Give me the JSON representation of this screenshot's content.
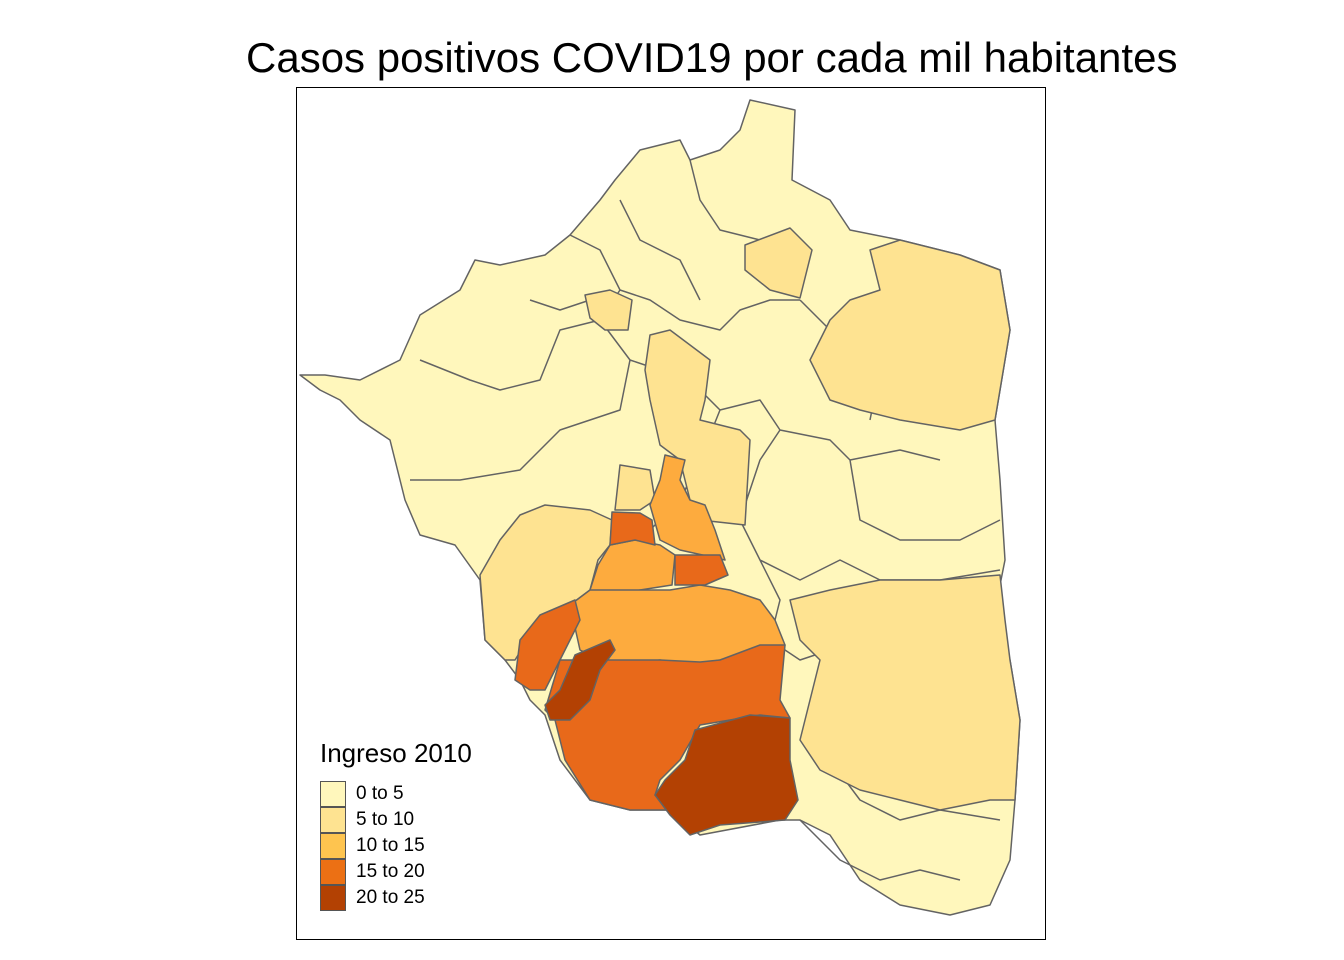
{
  "title": "Casos positivos COVID19 por cada mil habitantes",
  "legend": {
    "title": "Ingreso 2010",
    "items": [
      {
        "label": "0 to 5",
        "color": "#fff7bc"
      },
      {
        "label": "5 to 10",
        "color": "#fee391"
      },
      {
        "label": "10 to 15",
        "color": "#fec44f"
      },
      {
        "label": "15 to 20",
        "color": "#ec7014"
      },
      {
        "label": "20 to 25",
        "color": "#b34103"
      }
    ]
  },
  "colors": {
    "c1": "#fff7bc",
    "c2": "#fee391",
    "c3": "#fdab3e",
    "c4": "#e8691a",
    "c5": "#b34103",
    "border": "#636363",
    "frame": "#000000"
  }
}
